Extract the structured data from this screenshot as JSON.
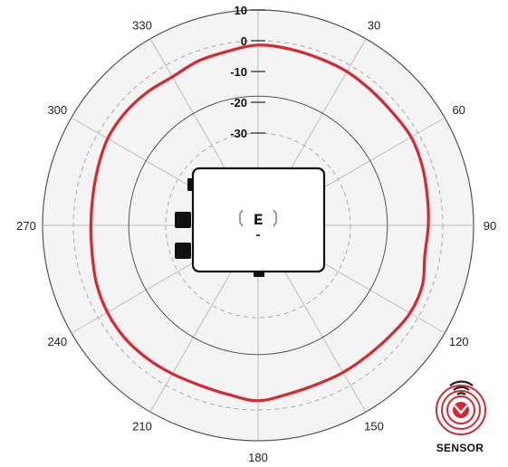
{
  "chart_data": {
    "type": "polar-line",
    "title": "",
    "angle_unit": "degrees",
    "angle_ticks": [
      0,
      30,
      60,
      90,
      120,
      150,
      180,
      210,
      240,
      270,
      300,
      330
    ],
    "angle_tick_labels": [
      "",
      "30",
      "60",
      "90",
      "120",
      "150",
      "180",
      "210",
      "240",
      "270",
      "300",
      "330"
    ],
    "radial_ticks": [
      10,
      0,
      -10,
      -20,
      -30
    ],
    "radial_tick_labels": [
      "10",
      "0",
      "-10",
      "-20",
      "-30"
    ],
    "radial_range": [
      -60,
      10
    ],
    "dashed_rings": [
      0,
      -30
    ],
    "series": [
      {
        "color": "#d6282e",
        "angles": [
          0,
          10,
          20,
          30,
          40,
          50,
          60,
          70,
          80,
          90,
          100,
          110,
          120,
          130,
          140,
          150,
          160,
          170,
          180,
          190,
          200,
          210,
          220,
          230,
          240,
          250,
          260,
          270,
          280,
          290,
          300,
          310,
          320,
          330,
          340,
          350
        ],
        "values": [
          -1.4,
          -1.8,
          -2.2,
          -2.3,
          -2.8,
          -3.0,
          -2.6,
          -3.3,
          -4.2,
          -4.7,
          -5.0,
          -3.2,
          -3.0,
          -4.1,
          -4.7,
          -4.8,
          -4.9,
          -4.3,
          -3.0,
          -4.2,
          -4.7,
          -4.3,
          -3.7,
          -3.3,
          -3.5,
          -4.2,
          -5.3,
          -5.7,
          -5.5,
          -4.7,
          -3.6,
          -3.4,
          -3.7,
          -4.3,
          -3.2,
          -2.6
        ]
      }
    ]
  },
  "device": {
    "logo": "ᴇ"
  },
  "brand": {
    "label": "SENSOR",
    "colors": {
      "red": "#d6282e",
      "dark": "#222222"
    }
  }
}
